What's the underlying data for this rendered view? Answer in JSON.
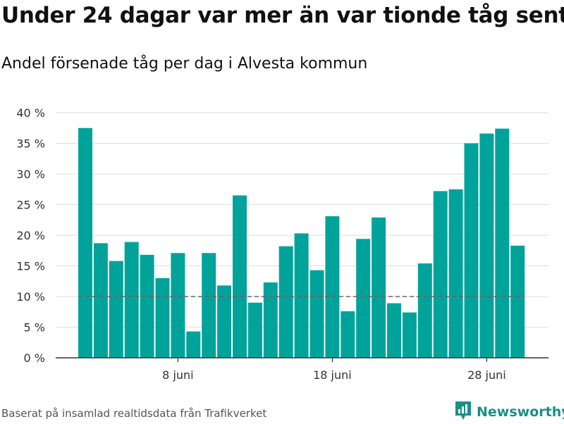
{
  "title": "Under 24 dagar var mer än var tionde tåg sent",
  "subtitle": "Andel försenade tåg per dag i Alvesta kommun",
  "footer": "Baserat på insamlad realtidsdata från Trafikverket",
  "brand": {
    "name": "Newsworthy",
    "icon": "newsworthy-logo-icon",
    "color": "#1a8f86"
  },
  "chart_data": {
    "type": "bar",
    "categories": [
      "2 juni",
      "3 juni",
      "4 juni",
      "5 juni",
      "6 juni",
      "7 juni",
      "8 juni",
      "9 juni",
      "10 juni",
      "11 juni",
      "12 juni",
      "13 juni",
      "14 juni",
      "15 juni",
      "16 juni",
      "17 juni",
      "18 juni",
      "19 juni",
      "20 juni",
      "21 juni",
      "22 juni",
      "23 juni",
      "24 juni",
      "25 juni",
      "26 juni",
      "27 juni",
      "28 juni",
      "29 juni",
      "30 juni"
    ],
    "values": [
      37.5,
      18.7,
      15.8,
      18.9,
      16.8,
      13.0,
      17.1,
      4.3,
      17.1,
      11.8,
      26.5,
      9.0,
      12.3,
      18.2,
      20.3,
      14.3,
      23.1,
      7.6,
      19.4,
      22.9,
      8.9,
      7.4,
      15.4,
      27.2,
      27.5,
      35.0,
      36.6,
      37.4,
      18.3
    ],
    "y_ticks": [
      0,
      5,
      10,
      15,
      20,
      25,
      30,
      35,
      40
    ],
    "y_tick_labels": [
      "0 %",
      "5 %",
      "10 %",
      "15 %",
      "20 %",
      "25 %",
      "30 %",
      "35 %",
      "40 %"
    ],
    "x_ticks": [
      {
        "category": "8 juni",
        "label": "8 juni"
      },
      {
        "category": "18 juni",
        "label": "18 juni"
      },
      {
        "category": "28 juni",
        "label": "28 juni"
      }
    ],
    "ylim": [
      0,
      40
    ],
    "reference_line": 10,
    "bar_color": "#00a39a",
    "grid": true
  }
}
